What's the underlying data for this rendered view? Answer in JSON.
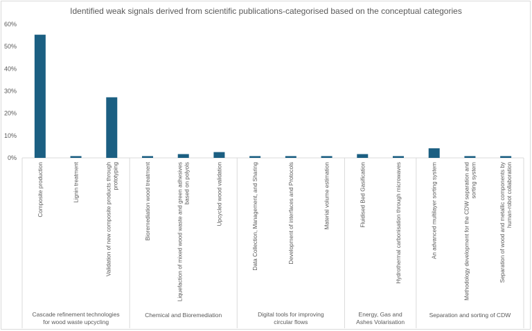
{
  "chart_data": {
    "type": "bar",
    "title": "Identified weak signals derived from scientific publications-categorised based on the conceptual categories",
    "xlabel": "",
    "ylabel": "",
    "ylim": [
      0,
      60
    ],
    "y_ticks": [
      "0%",
      "10%",
      "20%",
      "30%",
      "40%",
      "50%",
      "60%"
    ],
    "gridlines": false,
    "legend": "none",
    "bar_color": "#1b5f82",
    "groups": [
      {
        "name": "Cascade refinement technologies for wood waste upcycling",
        "categories": [
          {
            "label": "Composite production",
            "value": 55.3
          },
          {
            "label": "Lignin treatment",
            "value": 0.8
          },
          {
            "label": "Validation of new composite products through prototyping",
            "value": 27.2
          }
        ]
      },
      {
        "name": "Chemical and Bioremediation",
        "categories": [
          {
            "label": "Bioremediation wood treatment",
            "value": 0.8
          },
          {
            "label": "Liquefaction of mixed wood waste and green adhesives based on polyols",
            "value": 1.7
          },
          {
            "label": "Upcycled wood validation",
            "value": 2.6
          }
        ]
      },
      {
        "name": "Digital tools for improving circular flows",
        "categories": [
          {
            "label": "Data Collection, Management, and Sharing",
            "value": 0.8
          },
          {
            "label": "Development of interfaces and Protocols",
            "value": 0.8
          },
          {
            "label": "Material volume estimation",
            "value": 0.8
          }
        ]
      },
      {
        "name": "Energy, Gas and Ashes Volarisation",
        "categories": [
          {
            "label": "Fluidised Bed Gasification",
            "value": 1.7
          },
          {
            "label": "Hydrothermal carbonisation through microwaves",
            "value": 0.8
          }
        ]
      },
      {
        "name": "Separation and sorting of CDW",
        "categories": [
          {
            "label": "An advanced multilayer sorting system",
            "value": 4.3
          },
          {
            "label": "Methodology development for the CDW separation and sorting system",
            "value": 0.8
          },
          {
            "label": "Separation of wood and metallic components by human-robot collaboration",
            "value": 0.8
          }
        ]
      }
    ]
  }
}
